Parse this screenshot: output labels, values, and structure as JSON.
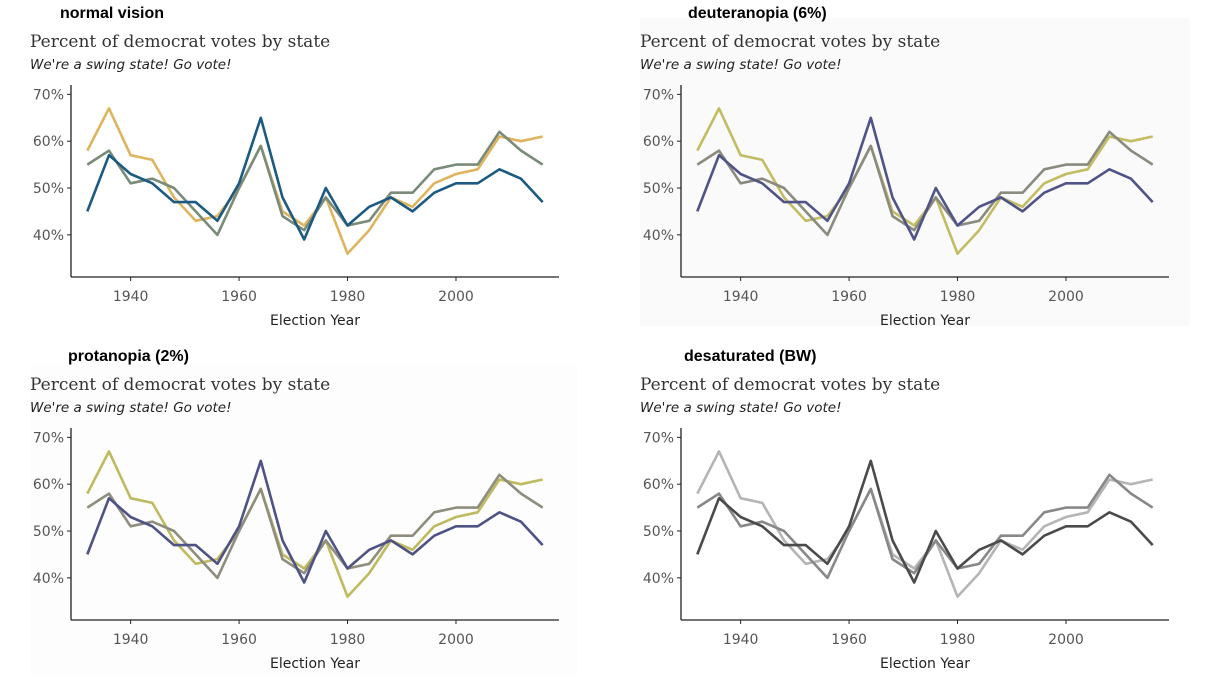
{
  "panels": [
    {
      "label": "normal vision",
      "colors": {
        "series_a": "#E0B45E",
        "series_b": "#798B79",
        "series_c": "#1B5A82"
      },
      "background": "#ffffff"
    },
    {
      "label": "deuteranopia (6%)",
      "colors": {
        "series_a": "#C4BC63",
        "series_b": "#8A8A7E",
        "series_c": "#4F5386"
      },
      "background": "#fafafa"
    },
    {
      "label": "protanopia (2%)",
      "colors": {
        "series_a": "#BFBA5E",
        "series_b": "#8E8D7E",
        "series_c": "#4E5284"
      },
      "background": "#fdfdfd"
    },
    {
      "label": "desaturated (BW)",
      "colors": {
        "series_a": "#B5B5B5",
        "series_b": "#888888",
        "series_c": "#4A4A4A"
      },
      "background": "#ffffff"
    }
  ],
  "chart_data": {
    "type": "line",
    "title": "Percent of democrat votes by state",
    "subtitle": "We're a swing state! Go vote!",
    "xlabel": "Election Year",
    "ylabel": "",
    "x": [
      1932,
      1936,
      1940,
      1944,
      1948,
      1952,
      1956,
      1960,
      1964,
      1968,
      1972,
      1976,
      1980,
      1984,
      1988,
      1992,
      1996,
      2000,
      2004,
      2008,
      2012,
      2016
    ],
    "xticks": [
      1940,
      1960,
      1980,
      2000
    ],
    "yticks": [
      40,
      50,
      60,
      70
    ],
    "ytick_labels": [
      "40%",
      "50%",
      "60%",
      "70%"
    ],
    "xlim": [
      1929,
      2019
    ],
    "ylim": [
      31,
      72
    ],
    "legend": "none",
    "series": [
      {
        "key": "series_a",
        "values": [
          58,
          67,
          57,
          56,
          48,
          43,
          44,
          50,
          59,
          45,
          42,
          48,
          36,
          41,
          48,
          46,
          51,
          53,
          54,
          61,
          60,
          61
        ]
      },
      {
        "key": "series_b",
        "values": [
          55,
          58,
          51,
          52,
          50,
          45,
          40,
          50,
          59,
          44,
          41,
          48,
          42,
          43,
          49,
          49,
          54,
          55,
          55,
          62,
          58,
          55
        ]
      },
      {
        "key": "series_c",
        "values": [
          45,
          57,
          53,
          51,
          47,
          47,
          43,
          51,
          65,
          48,
          39,
          50,
          42,
          46,
          48,
          45,
          49,
          51,
          51,
          54,
          52,
          47
        ]
      }
    ]
  }
}
